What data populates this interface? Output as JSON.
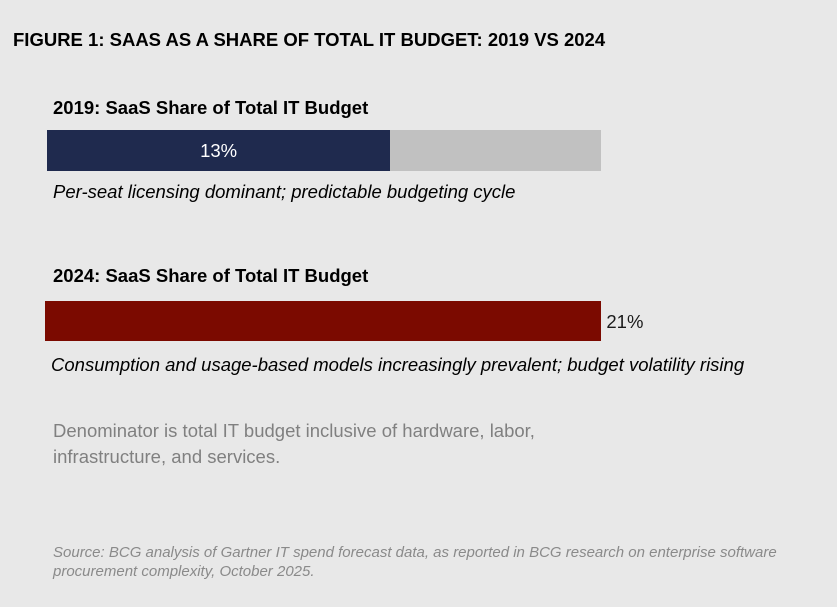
{
  "figure_title": "FIGURE 1: SAAS AS A SHARE OF TOTAL IT BUDGET:  2019 VS 2024",
  "chart_data": {
    "type": "bar",
    "orientation": "horizontal",
    "title": "FIGURE 1: SAAS AS A SHARE OF TOTAL IT BUDGET:  2019 VS 2024",
    "unit": "%",
    "panels": [
      {
        "heading": "2019:  SaaS Share of Total IT Budget",
        "value": 13,
        "value_label": "13%",
        "label_position": "inside",
        "color": "#1f2a4e",
        "track_color": "#c1c1c1",
        "caption": "Per-seat licensing dominant; predictable budgeting cycle"
      },
      {
        "heading": "2024:  SaaS Share of Total IT Budget",
        "value": 21,
        "value_label": "21%",
        "label_position": "outside",
        "color": "#7b0a00",
        "caption": "Consumption and usage-based models increasingly prevalent; budget volatility rising"
      }
    ]
  },
  "note": "Denominator is total IT budget inclusive of hardware, labor, infrastructure, and services.",
  "source": "Source: BCG analysis of Gartner IT spend forecast data, as reported in BCG research on enterprise software procurement complexity, October 2025."
}
